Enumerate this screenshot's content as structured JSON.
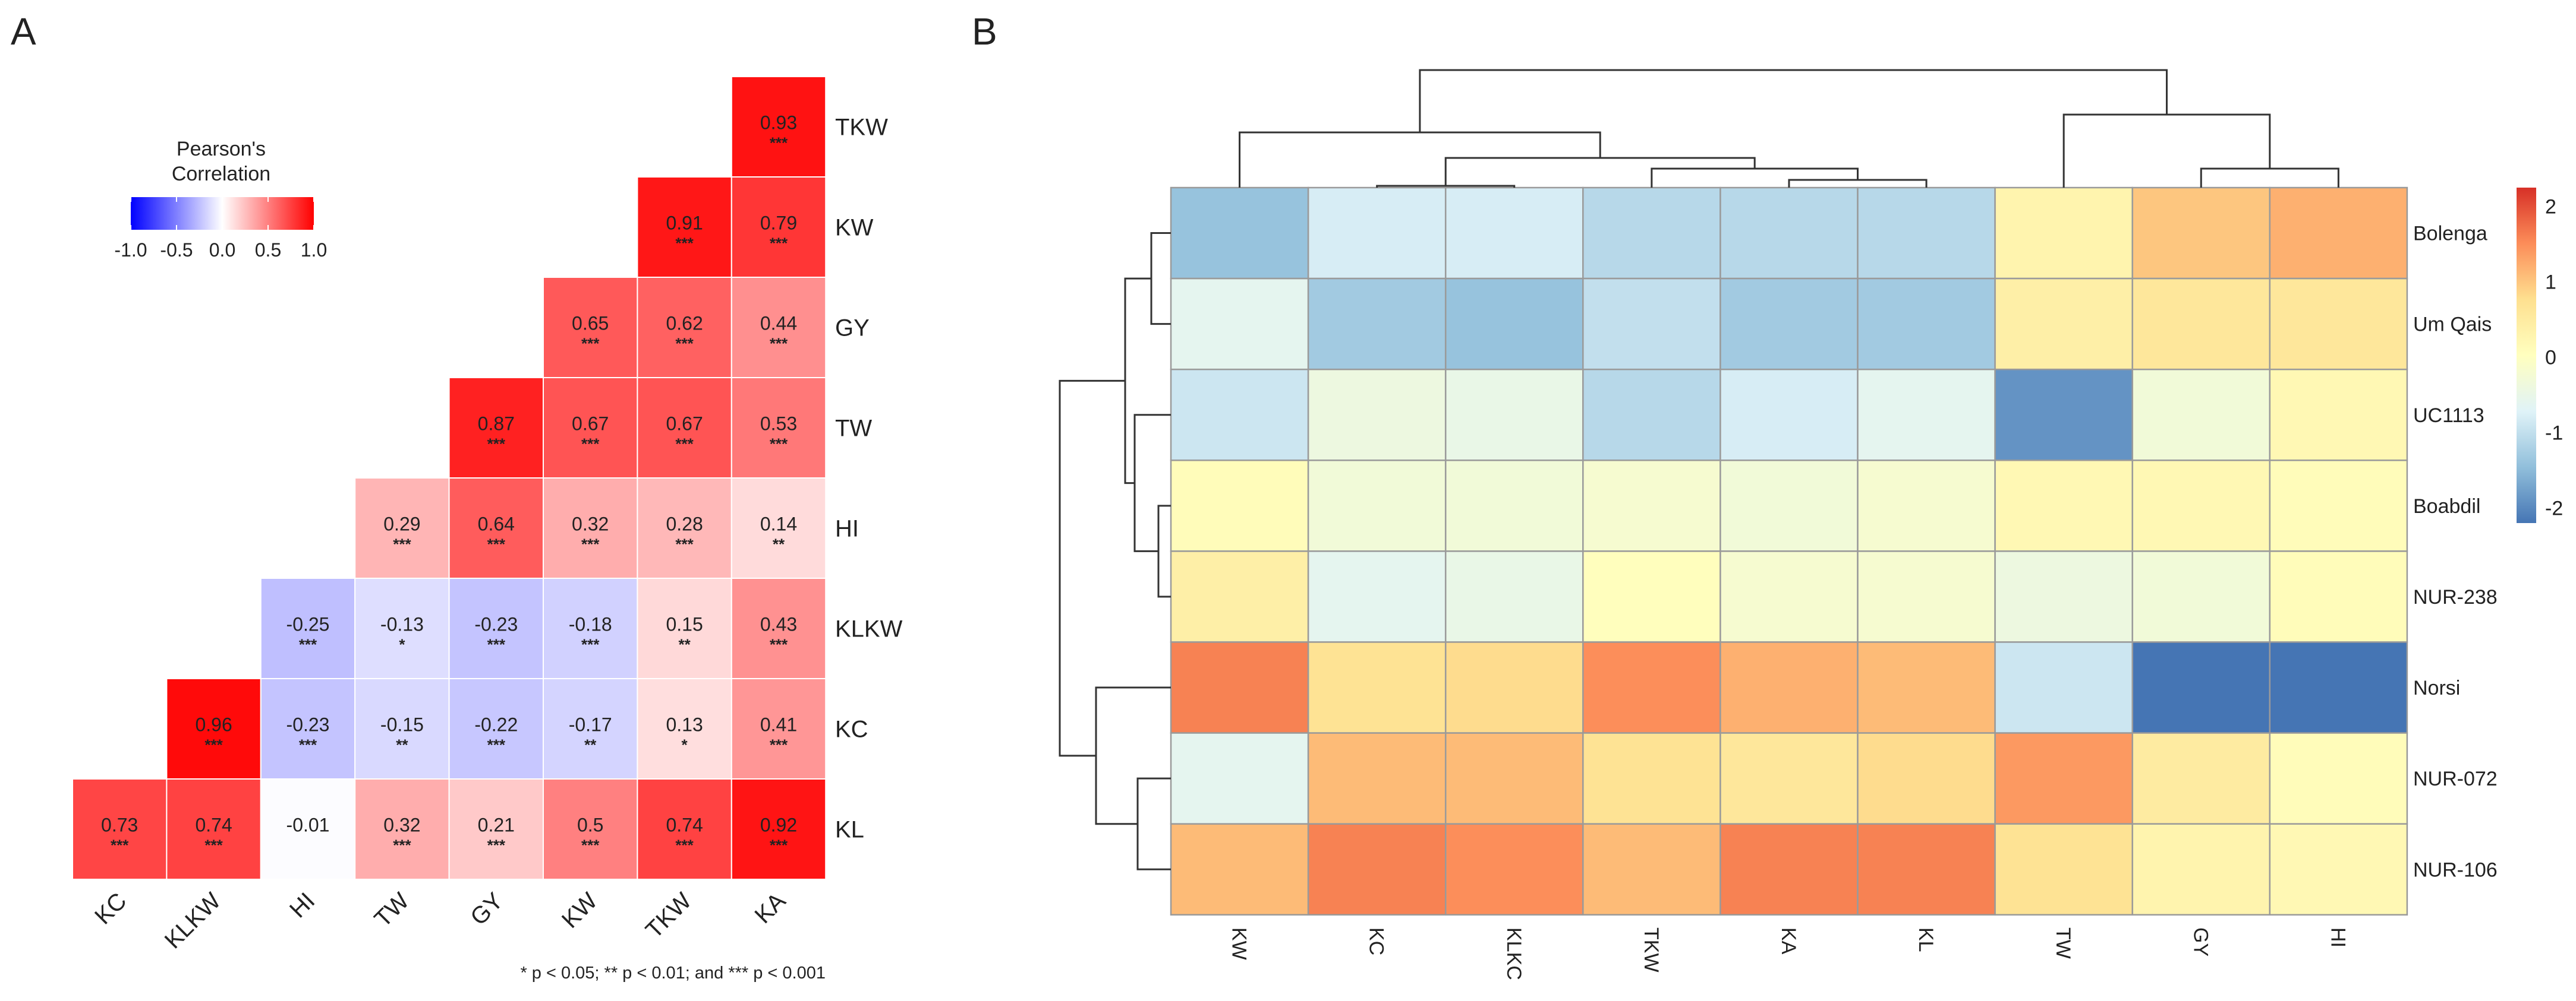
{
  "panels": {
    "a": "A",
    "b": "B"
  },
  "chart_data": [
    {
      "type": "heatmap",
      "title": "Pearson's Correlation",
      "legend": {
        "title_line1": "Pearson's",
        "title_line2": "Correlation",
        "ticks": [
          "-1.0",
          "-0.5",
          "0.0",
          "0.5",
          "1.0"
        ],
        "range": [
          -1,
          1
        ],
        "low_color": "#0000FF",
        "mid_color": "#FFFFFF",
        "high_color": "#FF0000",
        "placement": "top-left"
      },
      "rows": [
        "TKW",
        "KW",
        "GY",
        "TW",
        "HI",
        "KLKW",
        "KC",
        "KL"
      ],
      "columns": [
        "KC",
        "KLKW",
        "HI",
        "TW",
        "GY",
        "KW",
        "TKW",
        "KA"
      ],
      "cells": [
        {
          "row": "TKW",
          "col": "KA",
          "value": "0.93",
          "sig": "***"
        },
        {
          "row": "KW",
          "col": "TKW",
          "value": "0.91",
          "sig": "***"
        },
        {
          "row": "KW",
          "col": "KA",
          "value": "0.79",
          "sig": "***"
        },
        {
          "row": "GY",
          "col": "KW",
          "value": "0.65",
          "sig": "***"
        },
        {
          "row": "GY",
          "col": "TKW",
          "value": "0.62",
          "sig": "***"
        },
        {
          "row": "GY",
          "col": "KA",
          "value": "0.44",
          "sig": "***"
        },
        {
          "row": "TW",
          "col": "GY",
          "value": "0.87",
          "sig": "***"
        },
        {
          "row": "TW",
          "col": "KW",
          "value": "0.67",
          "sig": "***"
        },
        {
          "row": "TW",
          "col": "TKW",
          "value": "0.67",
          "sig": "***"
        },
        {
          "row": "TW",
          "col": "KA",
          "value": "0.53",
          "sig": "***"
        },
        {
          "row": "HI",
          "col": "TW",
          "value": "0.29",
          "sig": "***"
        },
        {
          "row": "HI",
          "col": "GY",
          "value": "0.64",
          "sig": "***"
        },
        {
          "row": "HI",
          "col": "KW",
          "value": "0.32",
          "sig": "***"
        },
        {
          "row": "HI",
          "col": "TKW",
          "value": "0.28",
          "sig": "***"
        },
        {
          "row": "HI",
          "col": "KA",
          "value": "0.14",
          "sig": "**"
        },
        {
          "row": "KLKW",
          "col": "HI",
          "value": "-0.25",
          "sig": "***"
        },
        {
          "row": "KLKW",
          "col": "TW",
          "value": "-0.13",
          "sig": "*"
        },
        {
          "row": "KLKW",
          "col": "GY",
          "value": "-0.23",
          "sig": "***"
        },
        {
          "row": "KLKW",
          "col": "KW",
          "value": "-0.18",
          "sig": "***"
        },
        {
          "row": "KLKW",
          "col": "TKW",
          "value": "0.15",
          "sig": "**"
        },
        {
          "row": "KLKW",
          "col": "KA",
          "value": "0.43",
          "sig": "***"
        },
        {
          "row": "KC",
          "col": "KLKW",
          "value": "0.96",
          "sig": "***"
        },
        {
          "row": "KC",
          "col": "HI",
          "value": "-0.23",
          "sig": "***"
        },
        {
          "row": "KC",
          "col": "TW",
          "value": "-0.15",
          "sig": "**"
        },
        {
          "row": "KC",
          "col": "GY",
          "value": "-0.22",
          "sig": "***"
        },
        {
          "row": "KC",
          "col": "KW",
          "value": "-0.17",
          "sig": "**"
        },
        {
          "row": "KC",
          "col": "TKW",
          "value": "0.13",
          "sig": "*"
        },
        {
          "row": "KC",
          "col": "KA",
          "value": "0.41",
          "sig": "***"
        },
        {
          "row": "KL",
          "col": "KC",
          "value": "0.73",
          "sig": "***"
        },
        {
          "row": "KL",
          "col": "KLKW",
          "value": "0.74",
          "sig": "***"
        },
        {
          "row": "KL",
          "col": "HI",
          "value": "-0.01",
          "sig": ""
        },
        {
          "row": "KL",
          "col": "TW",
          "value": "0.32",
          "sig": "***"
        },
        {
          "row": "KL",
          "col": "GY",
          "value": "0.21",
          "sig": "***"
        },
        {
          "row": "KL",
          "col": "KW",
          "value": "0.5",
          "sig": "***"
        },
        {
          "row": "KL",
          "col": "TKW",
          "value": "0.74",
          "sig": "***"
        },
        {
          "row": "KL",
          "col": "KA",
          "value": "0.92",
          "sig": "***"
        }
      ],
      "footnote": "* p < 0.05; ** p < 0.01; and *** p < 0.001"
    },
    {
      "type": "heatmap",
      "title": "",
      "rows": [
        "Bolenga",
        "Um Qais",
        "UC1113",
        "Boabdil",
        "NUR-238",
        "Norsi",
        "NUR-072",
        "NUR-106"
      ],
      "columns": [
        "KW",
        "KC",
        "KLKC",
        "TKW",
        "KA",
        "KL",
        "TW",
        "GY",
        "HI"
      ],
      "values": [
        [
          -1.4,
          -0.8,
          -0.8,
          -1.1,
          -1.1,
          -1.1,
          0.3,
          1.0,
          1.2
        ],
        [
          -0.6,
          -1.3,
          -1.4,
          -1.0,
          -1.3,
          -1.3,
          0.4,
          0.6,
          0.6
        ],
        [
          -0.9,
          -0.4,
          -0.5,
          -1.1,
          -0.8,
          -0.6,
          -1.9,
          -0.3,
          0.2
        ],
        [
          0.1,
          -0.3,
          -0.3,
          -0.2,
          -0.3,
          -0.2,
          0.2,
          0.2,
          0.1
        ],
        [
          0.4,
          -0.6,
          -0.5,
          0.05,
          -0.2,
          -0.2,
          -0.4,
          -0.3,
          0.1
        ],
        [
          1.6,
          0.7,
          0.8,
          1.5,
          1.2,
          1.1,
          -0.9,
          -2.2,
          -2.2
        ],
        [
          -0.6,
          1.1,
          1.1,
          0.7,
          0.6,
          0.8,
          1.4,
          0.5,
          0.1
        ],
        [
          1.1,
          1.6,
          1.5,
          1.1,
          1.6,
          1.6,
          0.7,
          0.3,
          0.2
        ]
      ],
      "legend": {
        "ticks": [
          "2",
          "1",
          "0",
          "-1",
          "-2"
        ],
        "tick_values": [
          2,
          1,
          0,
          -1,
          -2
        ],
        "range": [
          -2.2,
          2.25
        ],
        "palette": [
          "#4575B4",
          "#91BFDB",
          "#E0F3F8",
          "#FFFFBF",
          "#FEE090",
          "#FC8D59",
          "#D73027"
        ],
        "placement": "right"
      },
      "dendrograms": {
        "columns": true,
        "rows": true
      }
    }
  ]
}
